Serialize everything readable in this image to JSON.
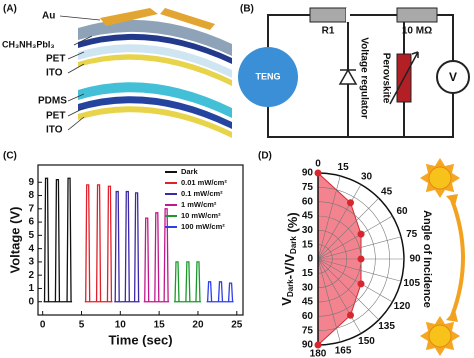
{
  "panels": {
    "a": {
      "label": "(A)",
      "layers": [
        "Au",
        "CH₃NH₃PbI₃",
        "PET",
        "ITO",
        "PDMS",
        "PET",
        "ITO"
      ]
    },
    "b": {
      "label": "(B)",
      "source": "TENG",
      "r1": "R1",
      "r2": "10 MΩ",
      "regulator": "Voltage regulator",
      "sensor": "Perovskite",
      "meter": "V"
    },
    "c": {
      "label": "(C)"
    },
    "d": {
      "label": "(D)"
    }
  },
  "chart_data": [
    {
      "type": "line",
      "xlabel": "Time (sec)",
      "ylabel": "Voltage (V)",
      "xlim": [
        -0.6,
        25.8
      ],
      "ylim": [
        -1,
        10.3
      ],
      "xticks": [
        0,
        5,
        10,
        15,
        20,
        25
      ],
      "yticks": [
        0,
        1,
        2,
        3,
        4,
        5,
        6,
        7,
        8,
        9
      ],
      "legend": "upper right",
      "series": [
        {
          "name": "Dark",
          "color": "#111111",
          "x": [
            0.5,
            1.9,
            3.4
          ],
          "values": [
            9.3,
            9.2,
            9.3
          ]
        },
        {
          "name": "0.01 mW/cm²",
          "color": "#e0202a",
          "x": [
            5.8,
            7.2,
            8.6
          ],
          "values": [
            8.8,
            8.8,
            8.7
          ]
        },
        {
          "name": "0.1 mW/cm²",
          "color": "#3a2aa8",
          "x": [
            9.6,
            10.9,
            12.1
          ],
          "values": [
            8.3,
            8.3,
            8.2
          ]
        },
        {
          "name": "1 mW/cm²",
          "color": "#c0188e",
          "x": [
            13.4,
            14.7,
            15.9
          ],
          "values": [
            6.3,
            6.7,
            7.0
          ]
        },
        {
          "name": "10 mW/cm²",
          "color": "#1a9a2a",
          "x": [
            17.3,
            18.7,
            20.0
          ],
          "values": [
            3.0,
            3.0,
            3.0
          ]
        },
        {
          "name": "100 mW/cm²",
          "color": "#2f3fe8",
          "x": [
            21.5,
            22.9,
            24.2
          ],
          "values": [
            1.5,
            1.5,
            1.4
          ]
        }
      ]
    },
    {
      "type": "polar",
      "ylabel": {
        "v1": "V",
        "sub1": "Dark",
        "mid": "-V/V",
        "sub2": "Dark",
        "unit": " (%)"
      },
      "side_label": "Angle of Incidence",
      "thetalim": [
        0,
        180
      ],
      "thetaticks": [
        0,
        15,
        30,
        45,
        60,
        75,
        90,
        105,
        120,
        135,
        150,
        165,
        180
      ],
      "rlim": [
        0,
        90
      ],
      "rticks": [
        0,
        15,
        30,
        45,
        60,
        75,
        90
      ],
      "theta": [
        0,
        30,
        60,
        90,
        120,
        150,
        180
      ],
      "values": [
        90,
        68,
        52,
        45,
        52,
        68,
        90
      ],
      "color": "#f26d7d",
      "marker_color": "#d8262e"
    }
  ]
}
